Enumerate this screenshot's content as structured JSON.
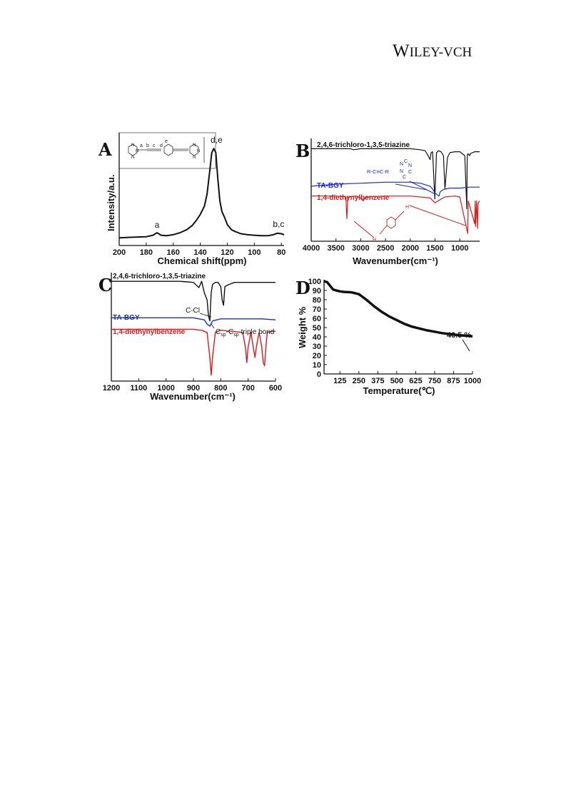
{
  "header": {
    "brand_part1": "W",
    "brand_part2": "ILEY",
    "brand_part3": "-VCH"
  },
  "chart_data": [
    {
      "panel": "A",
      "type": "line",
      "xlabel": "Chemical shift(ppm)",
      "ylabel": "Intensity/a.u.",
      "xlim": [
        200,
        78
      ],
      "x_ticks": [
        "200",
        "180",
        "160",
        "140",
        "120",
        "100",
        "80"
      ],
      "x_tick_values": [
        200,
        180,
        160,
        140,
        120,
        100,
        80
      ],
      "inset_labels": [
        "N",
        "N",
        "N",
        "a",
        "b",
        "c",
        "d",
        "e",
        "N",
        "N",
        "N"
      ],
      "annotations": [
        {
          "text": "a",
          "x": 172,
          "y": 0.09
        },
        {
          "text": "d,e",
          "x": 128,
          "y": 0.93
        },
        {
          "text": "b,c",
          "x": 82,
          "y": 0.1
        }
      ],
      "series": [
        {
          "x": [
            200,
            190,
            180,
            175,
            172,
            169,
            165,
            160,
            155,
            150,
            146,
            143,
            140,
            137,
            135,
            133,
            131.5,
            130,
            128.5,
            127,
            125.5,
            124,
            122,
            120,
            117,
            114,
            110,
            105,
            100,
            95,
            90,
            86,
            83,
            80,
            78
          ],
          "y": [
            0.02,
            0.025,
            0.03,
            0.045,
            0.07,
            0.045,
            0.04,
            0.05,
            0.07,
            0.1,
            0.14,
            0.19,
            0.25,
            0.33,
            0.45,
            0.68,
            0.86,
            0.9,
            0.86,
            0.6,
            0.38,
            0.28,
            0.22,
            0.15,
            0.1,
            0.08,
            0.06,
            0.05,
            0.045,
            0.04,
            0.04,
            0.05,
            0.065,
            0.06,
            0.05
          ],
          "color": "#111111"
        }
      ]
    },
    {
      "panel": "B",
      "type": "line",
      "xlabel": "Wavenumber(cm⁻¹)",
      "xlim": [
        4000,
        600
      ],
      "x_ticks": [
        "4000",
        "3500",
        "3000",
        "2500",
        "2000",
        "1500",
        "1000"
      ],
      "x_tick_values": [
        4000,
        3500,
        3000,
        2500,
        2000,
        1500,
        1000
      ],
      "structure_label": "R-C≡C-R",
      "ring_labels": [
        "N",
        "C",
        "N",
        "N",
        "C",
        "C"
      ],
      "annotations": [
        {
          "text": "H"
        },
        {
          "text": "H"
        }
      ],
      "series": [
        {
          "name": "2,4,6-trichloro-1,3,5-triazine",
          "color": "#111111",
          "x": [
            4000,
            3500,
            3200,
            3150,
            3000,
            2500,
            2000,
            1800,
            1700,
            1650,
            1600,
            1580,
            1550,
            1505,
            1470,
            1430,
            1380,
            1330,
            1300,
            1250,
            1200,
            1100,
            1000,
            900,
            860,
            850,
            840,
            800,
            790,
            700,
            600
          ],
          "y": [
            0.91,
            0.91,
            0.91,
            0.9,
            0.91,
            0.91,
            0.91,
            0.9,
            0.89,
            0.85,
            0.8,
            0.87,
            0.88,
            0.4,
            0.87,
            0.89,
            0.88,
            0.84,
            0.5,
            0.82,
            0.87,
            0.88,
            0.88,
            0.84,
            0.3,
            0.83,
            0.86,
            0.84,
            0.86,
            0.88,
            0.88
          ]
        },
        {
          "name": "TA-BGY",
          "color": "#1a2bd4",
          "x": [
            4000,
            3500,
            3000,
            2500,
            2000,
            1800,
            1600,
            1550,
            1500,
            1450,
            1420,
            1400,
            1350,
            1300,
            1200,
            1000,
            800,
            600
          ],
          "y": [
            0.53,
            0.55,
            0.56,
            0.57,
            0.57,
            0.56,
            0.53,
            0.5,
            0.46,
            0.44,
            0.43,
            0.47,
            0.49,
            0.5,
            0.51,
            0.51,
            0.52,
            0.52
          ]
        },
        {
          "name": "1,4-diethynylbenzene",
          "color": "#d7191c",
          "x": [
            4000,
            3500,
            3300,
            3280,
            3260,
            3100,
            3000,
            2950,
            2900,
            2500,
            2110,
            2000,
            1600,
            1500,
            1410,
            1300,
            1100,
            1000,
            840,
            835,
            830,
            700,
            690,
            680,
            660,
            640,
            630,
            600
          ],
          "y": [
            0.43,
            0.43,
            0.42,
            0.2,
            0.42,
            0.43,
            0.41,
            0.38,
            0.42,
            0.43,
            0.43,
            0.43,
            0.41,
            0.36,
            0.39,
            0.42,
            0.43,
            0.42,
            0.05,
            0.2,
            0.38,
            0.15,
            0.38,
            0.12,
            0.38,
            0.1,
            0.36,
            0.38
          ]
        }
      ]
    },
    {
      "panel": "C",
      "type": "line",
      "xlabel": "Wavenumber(cm⁻¹)",
      "xlim": [
        1200,
        600
      ],
      "x_ticks": [
        "1200",
        "1100",
        "1000",
        "900",
        "800",
        "700",
        "600"
      ],
      "x_tick_values": [
        1200,
        1100,
        1000,
        900,
        800,
        700,
        600
      ],
      "annotations": [
        {
          "text": "C-Cl",
          "x": 865,
          "y": 0.64
        },
        {
          "text": "C",
          "x": 828,
          "y": 0.38
        },
        {
          "text": "sp",
          "x": 822,
          "y": 0.36
        },
        {
          "text": "-C",
          "x": 812,
          "y": 0.38
        },
        {
          "text": "sp",
          "x": 798,
          "y": 0.36
        },
        {
          "text": "triple bond",
          "x": 760,
          "y": 0.38
        }
      ],
      "series": [
        {
          "name": "2,4,6-trichloro-1,3,5-triazine",
          "color": "#111111",
          "x": [
            1200,
            1100,
            1000,
            950,
            900,
            880,
            870,
            860,
            850,
            845,
            840,
            835,
            830,
            820,
            810,
            800,
            795,
            790,
            785,
            770,
            750,
            700,
            650,
            600
          ],
          "y": [
            0.93,
            0.93,
            0.93,
            0.93,
            0.92,
            0.87,
            0.93,
            0.82,
            0.75,
            0.6,
            0.55,
            0.82,
            0.9,
            0.92,
            0.92,
            0.88,
            0.75,
            0.7,
            0.88,
            0.9,
            0.92,
            0.92,
            0.92,
            0.92
          ]
        },
        {
          "name": "TA-BGY",
          "color": "#1a2bd4",
          "x": [
            1200,
            1100,
            1000,
            950,
            900,
            860,
            850,
            840,
            830,
            800,
            750,
            700,
            650,
            600
          ],
          "y": [
            0.58,
            0.58,
            0.58,
            0.58,
            0.58,
            0.56,
            0.52,
            0.5,
            0.55,
            0.57,
            0.57,
            0.57,
            0.57,
            0.56
          ]
        },
        {
          "name": "1,4-diethynylbenzene",
          "color": "#d7191c",
          "x": [
            1200,
            1100,
            1000,
            950,
            900,
            870,
            850,
            840,
            835,
            830,
            820,
            800,
            720,
            710,
            705,
            700,
            690,
            680,
            675,
            670,
            660,
            650,
            645,
            640,
            635,
            630,
            615,
            600
          ],
          "y": [
            0.47,
            0.47,
            0.47,
            0.47,
            0.47,
            0.46,
            0.44,
            0.2,
            0.03,
            0.2,
            0.44,
            0.46,
            0.44,
            0.3,
            0.15,
            0.3,
            0.44,
            0.28,
            0.2,
            0.3,
            0.44,
            0.3,
            0.15,
            0.12,
            0.3,
            0.44,
            0.45,
            0.45
          ]
        }
      ]
    },
    {
      "panel": "D",
      "type": "line",
      "xlabel": "Temperature(℃)",
      "ylabel": "Weight %",
      "xlim": [
        20,
        1000
      ],
      "ylim": [
        0,
        100
      ],
      "x_ticks": [
        "125",
        "250",
        "375",
        "500",
        "625",
        "750",
        "875",
        "1000"
      ],
      "x_tick_values": [
        125,
        250,
        375,
        500,
        625,
        750,
        875,
        1000
      ],
      "y_ticks": [
        "0",
        "10",
        "20",
        "30",
        "40",
        "50",
        "60",
        "70",
        "80",
        "90",
        "100"
      ],
      "y_tick_values": [
        0,
        10,
        20,
        30,
        40,
        50,
        60,
        70,
        80,
        90,
        100
      ],
      "annotations": [
        {
          "text": "40.5 %",
          "x": 1000,
          "y": 40.5
        }
      ],
      "series": [
        {
          "color": "#111111",
          "x": [
            20,
            40,
            60,
            80,
            100,
            125,
            150,
            200,
            250,
            300,
            350,
            400,
            450,
            500,
            550,
            600,
            650,
            700,
            750,
            800,
            850,
            900,
            950,
            1000
          ],
          "y": [
            100,
            99,
            95,
            91,
            90,
            89,
            88.5,
            88,
            86,
            80,
            73,
            67,
            62,
            58,
            54,
            51,
            49,
            47,
            45.5,
            44,
            43,
            42,
            41.2,
            40.5
          ]
        }
      ]
    }
  ]
}
